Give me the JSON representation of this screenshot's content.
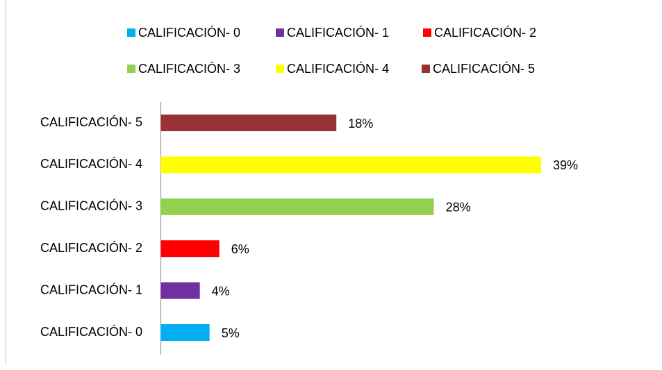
{
  "chart_data": {
    "type": "bar",
    "orientation": "horizontal",
    "categories": [
      "CALIFICACIÓN- 0",
      "CALIFICACIÓN- 1",
      "CALIFICACIÓN- 2",
      "CALIFICACIÓN- 3",
      "CALIFICACIÓN- 4",
      "CALIFICACIÓN- 5"
    ],
    "values": [
      5,
      4,
      6,
      28,
      39,
      18
    ],
    "value_labels": [
      "5%",
      "4%",
      "6%",
      "28%",
      "39%",
      "18%"
    ],
    "colors": [
      "#00b0f0",
      "#7030a0",
      "#ff0000",
      "#92d050",
      "#ffff00",
      "#993333"
    ],
    "legend": "top"
  }
}
